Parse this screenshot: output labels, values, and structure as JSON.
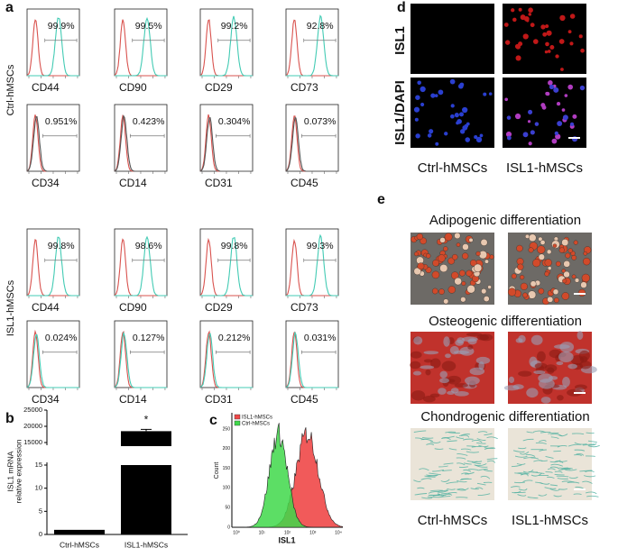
{
  "panel_labels": {
    "a": "a",
    "b": "b",
    "c": "c",
    "d": "d",
    "e": "e"
  },
  "panel_a": {
    "groups": [
      {
        "label": "Ctrl-hMSCs",
        "rows": [
          [
            {
              "marker": "CD44",
              "percent": "99.9%"
            },
            {
              "marker": "CD90",
              "percent": "99.5%"
            },
            {
              "marker": "CD29",
              "percent": "99.2%"
            },
            {
              "marker": "CD73",
              "percent": "92.8%"
            }
          ],
          [
            {
              "marker": "CD34",
              "percent": "0.951%"
            },
            {
              "marker": "CD14",
              "percent": "0.423%"
            },
            {
              "marker": "CD31",
              "percent": "0.304%"
            },
            {
              "marker": "CD45",
              "percent": "0.073%"
            }
          ]
        ]
      },
      {
        "label": "ISL1-hMSCs",
        "rows": [
          [
            {
              "marker": "CD44",
              "percent": "99.8%"
            },
            {
              "marker": "CD90",
              "percent": "98.6%"
            },
            {
              "marker": "CD29",
              "percent": "99.8%"
            },
            {
              "marker": "CD73",
              "percent": "99.3%"
            }
          ],
          [
            {
              "marker": "CD34",
              "percent": "0.024%"
            },
            {
              "marker": "CD14",
              "percent": "0.127%"
            },
            {
              "marker": "CD31",
              "percent": "0.212%"
            },
            {
              "marker": "CD45",
              "percent": "0.031%"
            }
          ]
        ]
      }
    ]
  },
  "panel_b": {
    "ylabel": [
      "ISL1 mRNA",
      "relative expression"
    ],
    "categories": [
      "Ctrl-hMSCs",
      "ISL1-hMSCs"
    ],
    "values": [
      1,
      18500
    ],
    "yticks_lower": [
      0,
      5,
      10,
      15
    ],
    "yticks_upper": [
      15000,
      20000,
      25000
    ],
    "annotation": "*"
  },
  "panel_c": {
    "legend": [
      "ISL1-hMSCs",
      "Ctrl-hMSCs"
    ],
    "ylabel": "Count",
    "xlabel": "ISL1",
    "yticks": [
      "0",
      "50",
      "100",
      "150",
      "200",
      "250"
    ],
    "xticks": [
      "10⁰",
      "10¹",
      "10²",
      "10³",
      "10⁴"
    ]
  },
  "panel_d": {
    "row_labels": [
      "ISL1",
      "ISL1/DAPI"
    ],
    "column_labels": [
      "Ctrl-hMSCs",
      "ISL1-hMSCs"
    ]
  },
  "panel_e": {
    "titles": [
      "Adipogenic differentiation",
      "Osteogenic differentiation",
      "Chondrogenic differentiation"
    ],
    "column_labels": [
      "Ctrl-hMSCs",
      "ISL1-hMSCs"
    ]
  }
}
